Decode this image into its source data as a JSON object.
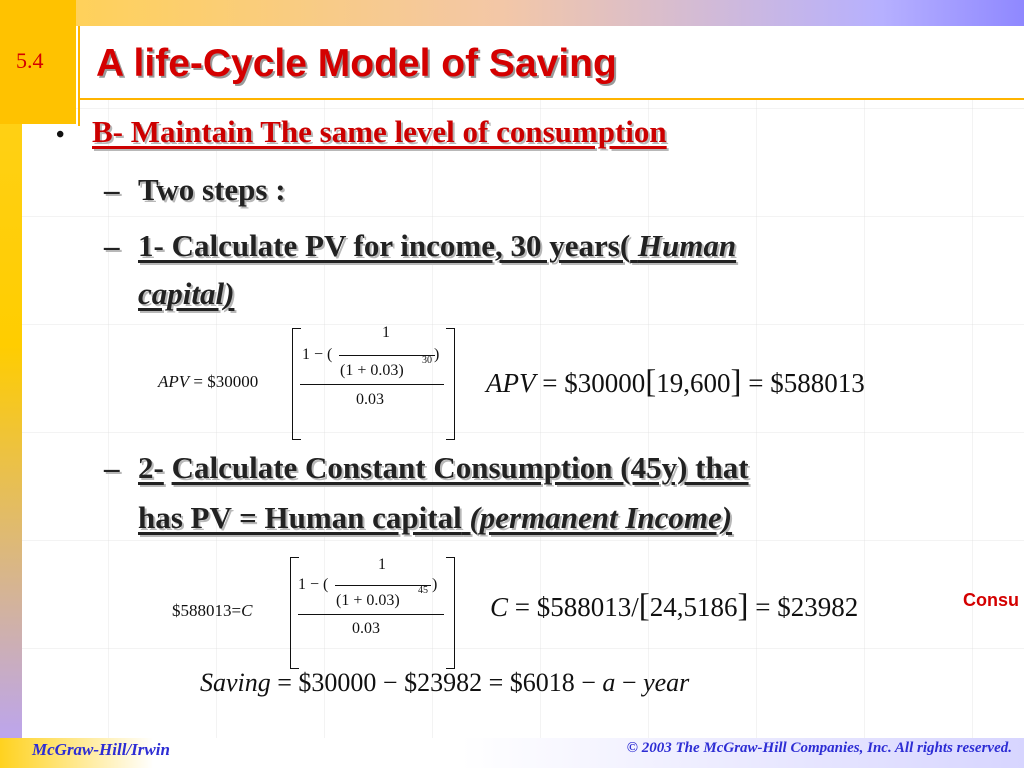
{
  "slide": {
    "number": "5.4",
    "title": "A life-Cycle Model of Saving"
  },
  "content": {
    "bullet1": {
      "marker": "•",
      "text": "B- Maintain The same level of consumption"
    },
    "sub1": {
      "marker": "–",
      "text": "Two steps :"
    },
    "sub2": {
      "marker": "–",
      "line1_prefix": "1- Calculate PV for income, 30 years(",
      "line1_italic": "Human",
      "line2_italic": "capital)"
    },
    "sub3": {
      "marker": "–",
      "prefix": "2-",
      "line1_text": "Calculate Constant Consumption (45y) that",
      "line2_text": "has PV = Human capital",
      "line2_italic": "(permanent Income)"
    }
  },
  "equations": {
    "eq1_left": {
      "lhs": "APV",
      "equals": "=",
      "coef": "$30000",
      "num_1": "1",
      "num_minus": "1 − (",
      "num_close": ")",
      "inner_num": "1",
      "inner_den": "(1 + 0.03)",
      "exponent": "30",
      "denominator": "0.03"
    },
    "eq1_right": {
      "lhs": "APV",
      "text": " = $30000",
      "bracket_value": "19,600",
      "rhs": " = $588013"
    },
    "eq2_left": {
      "lhs": "$588013",
      "equals": "=",
      "var": "C",
      "num_minus": "1 − (",
      "num_close": ")",
      "inner_num": "1",
      "inner_den": "(1 + 0.03)",
      "exponent": "45",
      "denominator": "0.03"
    },
    "eq2_right": {
      "lhs": "C",
      "text": " = $588013/",
      "bracket_value": "24,5186",
      "rhs": " = $23982"
    },
    "eq3": {
      "italic_start": "Saving",
      "middle": " = $30000 − $23982 = $6018 − ",
      "a": "a",
      "dash": " − ",
      "year": "year"
    },
    "side_label": "Consu"
  },
  "footer": {
    "left": "McGraw-Hill/Irwin",
    "right": "© 2003 The McGraw-Hill Companies, Inc. All rights reserved."
  },
  "colors": {
    "title_red": "#d40000",
    "accent_orange": "#ffc200",
    "footer_blue": "#2d2dd4"
  }
}
